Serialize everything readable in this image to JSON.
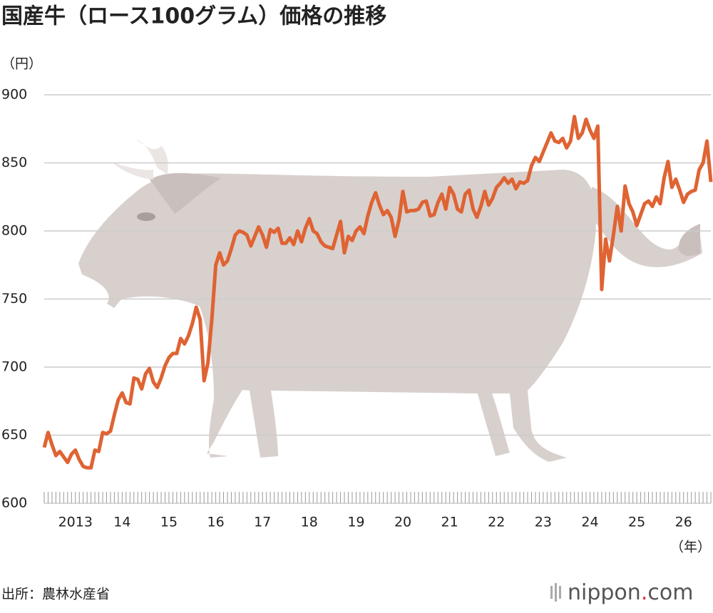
{
  "chart_data": {
    "type": "line",
    "title": "国産牛（ロース100グラム）価格の推移",
    "y_unit": "（円）",
    "x_unit": "（年）",
    "source": "出所：農林水産省",
    "logo": [
      "nippon",
      ".",
      "com"
    ],
    "color": "#df6333",
    "ylim": [
      600,
      900
    ],
    "yticks": [
      600,
      650,
      700,
      750,
      800,
      850,
      900
    ],
    "grid": true,
    "categories": [
      null,
      null,
      null,
      null,
      null,
      null,
      null,
      null,
      "2013",
      null,
      null,
      null,
      null,
      null,
      null,
      null,
      null,
      null,
      null,
      null,
      "14",
      null,
      null,
      null,
      null,
      null,
      null,
      null,
      null,
      null,
      null,
      null,
      "15",
      null,
      null,
      null,
      null,
      null,
      null,
      null,
      null,
      null,
      null,
      null,
      "16",
      null,
      null,
      null,
      null,
      null,
      null,
      null,
      null,
      null,
      null,
      null,
      "17",
      null,
      null,
      null,
      null,
      null,
      null,
      null,
      null,
      null,
      null,
      null,
      "18",
      null,
      null,
      null,
      null,
      null,
      null,
      null,
      null,
      null,
      null,
      null,
      "19",
      null,
      null,
      null,
      null,
      null,
      null,
      null,
      null,
      null,
      null,
      null,
      "20",
      null,
      null,
      null,
      null,
      null,
      null,
      null,
      null,
      null,
      null,
      null,
      "21",
      null,
      null,
      null,
      null,
      null,
      null,
      null,
      null,
      null,
      null,
      null,
      "22",
      null,
      null,
      null,
      null,
      null,
      null,
      null,
      null,
      null,
      null,
      null,
      "23",
      null,
      null,
      null,
      null,
      null,
      null,
      null,
      null,
      null,
      null,
      null,
      "24",
      null,
      null,
      null,
      null,
      null,
      null,
      null,
      null,
      null,
      null,
      null,
      "25",
      null,
      null,
      null,
      null,
      null,
      null,
      null,
      null,
      null,
      null,
      null,
      "26",
      null,
      null,
      null,
      null,
      null,
      null,
      null
    ],
    "values": [
      641,
      652,
      643,
      635,
      638,
      634,
      630,
      636,
      639,
      632,
      627,
      626,
      626,
      639,
      638,
      652,
      651,
      653,
      665,
      676,
      681,
      674,
      673,
      692,
      691,
      684,
      695,
      699,
      689,
      685,
      692,
      701,
      707,
      710,
      710,
      721,
      717,
      723,
      732,
      744,
      735,
      690,
      703,
      735,
      775,
      784,
      775,
      778,
      787,
      797,
      800,
      799,
      797,
      789,
      796,
      803,
      797,
      788,
      801,
      799,
      802,
      791,
      791,
      795,
      790,
      800,
      792,
      802,
      809,
      800,
      798,
      792,
      789,
      788,
      787,
      797,
      807,
      784,
      796,
      793,
      800,
      803,
      798,
      811,
      821,
      828,
      819,
      812,
      815,
      810,
      796,
      808,
      829,
      814,
      815,
      815,
      816,
      821,
      822,
      811,
      812,
      821,
      827,
      816,
      832,
      827,
      816,
      814,
      827,
      830,
      816,
      810,
      818,
      829,
      819,
      824,
      832,
      835,
      839,
      835,
      838,
      831,
      836,
      835,
      837,
      848,
      854,
      851,
      858,
      865,
      872,
      866,
      865,
      868,
      861,
      866,
      884,
      868,
      872,
      882,
      874,
      868,
      877,
      757,
      794,
      778,
      797,
      818,
      800,
      833,
      820,
      814,
      804,
      812,
      820,
      822,
      818,
      825,
      820,
      839,
      851,
      832,
      838,
      830,
      821,
      827,
      829,
      830,
      845,
      850,
      866,
      836
    ]
  }
}
